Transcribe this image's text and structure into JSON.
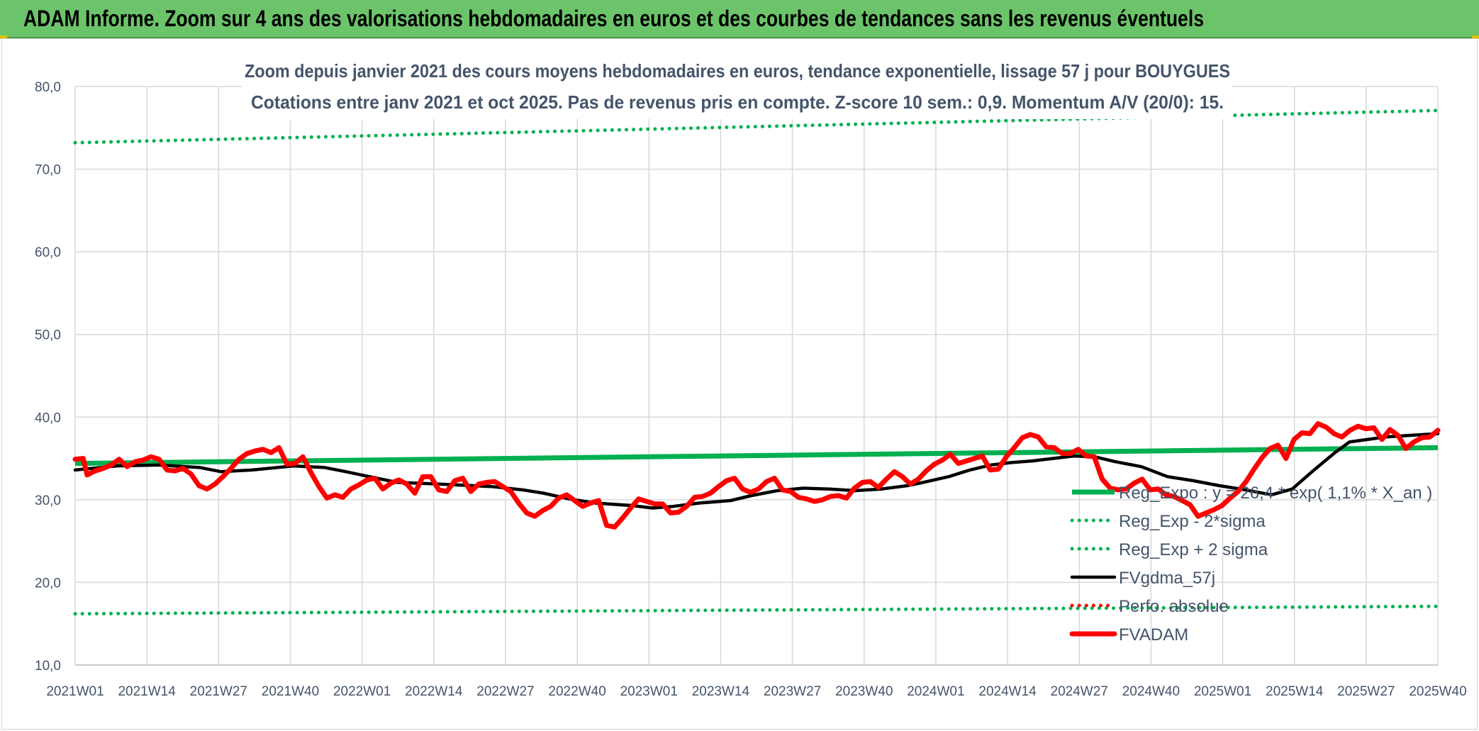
{
  "header": {
    "title": "ADAM Informe. Zoom sur 4 ans des valorisations hebdomadaires en euros et des courbes de tendances sans les revenus éventuels"
  },
  "colors": {
    "banner": "#6cc46a",
    "trend_green": "#00b050",
    "black": "#000000",
    "red": "#ff0000",
    "grid": "#d9d9d9",
    "text": "#44546a"
  },
  "chart_data": {
    "type": "line",
    "title": "Zoom depuis janvier 2021 des cours moyens hebdomadaires en euros, tendance exponentielle, lissage 57 j pour BOUYGUES",
    "subtitle": "Cotations entre janv 2021 et oct 2025. Pas de revenus pris en compte. Z-score 10 sem.: 0,9. Momentum A/V (20/0): 15.",
    "x_ticks": [
      "2021W01",
      "2021W14",
      "2021W27",
      "2021W40",
      "2022W01",
      "2022W14",
      "2022W27",
      "2022W40",
      "2023W01",
      "2023W14",
      "2023W27",
      "2023W40",
      "2024W01",
      "2024W14",
      "2024W27",
      "2024W40",
      "2025W01",
      "2025W14",
      "2025W27",
      "2025W40"
    ],
    "y_ticks": [
      "80,0",
      "70,0",
      "60,0",
      "50,0",
      "40,0",
      "30,0",
      "20,0",
      "10,0"
    ],
    "ylim": [
      10,
      80
    ],
    "grid": true,
    "legend_position": "lower-right",
    "series": [
      {
        "name": "Reg_Expo : y = 26,4 * exp( 1,1% *  X_an )",
        "style": "solid-thick",
        "color": "#00b050",
        "points": [
          [
            0,
            34.4
          ],
          [
            247,
            36.3
          ]
        ]
      },
      {
        "name": "Reg_Exp - 2*sigma",
        "style": "dotted",
        "color": "#00b050",
        "points": [
          [
            0,
            16.2
          ],
          [
            247,
            17.1
          ]
        ]
      },
      {
        "name": "Reg_Exp + 2 sigma",
        "style": "dotted",
        "color": "#00b050",
        "points": [
          [
            0,
            73.2
          ],
          [
            247,
            77.1
          ]
        ]
      },
      {
        "name": "FVgdma_57j",
        "style": "solid",
        "color": "#000000",
        "points": [
          [
            0,
            33.6
          ],
          [
            8,
            34.1
          ],
          [
            16,
            34.2
          ],
          [
            24,
            33.9
          ],
          [
            28,
            33.4
          ],
          [
            34,
            33.6
          ],
          [
            42,
            34.1
          ],
          [
            48,
            33.9
          ],
          [
            52,
            33.4
          ],
          [
            58,
            32.6
          ],
          [
            62,
            32.1
          ],
          [
            70,
            31.9
          ],
          [
            80,
            31.6
          ],
          [
            86,
            31.2
          ],
          [
            90,
            30.8
          ],
          [
            95,
            30.1
          ],
          [
            100,
            29.6
          ],
          [
            107,
            29.3
          ],
          [
            111,
            29.0
          ],
          [
            115,
            29.2
          ],
          [
            120,
            29.6
          ],
          [
            126,
            29.9
          ],
          [
            130,
            30.5
          ],
          [
            135,
            31.1
          ],
          [
            140,
            31.4
          ],
          [
            145,
            31.3
          ],
          [
            150,
            31.1
          ],
          [
            155,
            31.3
          ],
          [
            160,
            31.7
          ],
          [
            163,
            32.1
          ],
          [
            168,
            32.8
          ],
          [
            172,
            33.6
          ],
          [
            176,
            34.2
          ],
          [
            180,
            34.5
          ],
          [
            184,
            34.7
          ],
          [
            188,
            35.0
          ],
          [
            192,
            35.3
          ],
          [
            196,
            35.2
          ],
          [
            200,
            34.6
          ],
          [
            205,
            34.0
          ],
          [
            210,
            32.8
          ],
          [
            215,
            32.3
          ],
          [
            220,
            31.7
          ],
          [
            225,
            31.2
          ],
          [
            230,
            30.6
          ],
          [
            234,
            31.3
          ],
          [
            238,
            33.5
          ],
          [
            242,
            35.6
          ],
          [
            245,
            37.0
          ],
          [
            252,
            37.6
          ],
          [
            257,
            37.8
          ],
          [
            262,
            38.0
          ]
        ]
      },
      {
        "name": "Perfo. absolue",
        "style": "dotted",
        "color": "#ff0000",
        "points": []
      },
      {
        "name": "FVADAM",
        "style": "solid-thick",
        "color": "#ff0000",
        "points": [
          [
            0,
            34.9
          ],
          [
            2,
            35.0
          ],
          [
            3,
            33.0
          ],
          [
            5,
            33.5
          ],
          [
            7,
            33.8
          ],
          [
            9,
            34.2
          ],
          [
            11,
            34.9
          ],
          [
            13,
            34.0
          ],
          [
            15,
            34.6
          ],
          [
            17,
            34.8
          ],
          [
            19,
            35.2
          ],
          [
            21,
            34.9
          ],
          [
            23,
            33.6
          ],
          [
            25,
            33.5
          ],
          [
            27,
            33.8
          ],
          [
            29,
            33.1
          ],
          [
            31,
            31.7
          ],
          [
            33,
            31.3
          ],
          [
            35,
            31.9
          ],
          [
            37,
            32.8
          ],
          [
            39,
            33.8
          ],
          [
            41,
            34.9
          ],
          [
            43,
            35.6
          ],
          [
            45,
            35.9
          ],
          [
            47,
            36.1
          ],
          [
            49,
            35.7
          ],
          [
            51,
            36.3
          ],
          [
            53,
            34.3
          ],
          [
            55,
            34.4
          ],
          [
            57,
            35.2
          ],
          [
            59,
            33.3
          ],
          [
            61,
            31.6
          ],
          [
            63,
            30.2
          ],
          [
            65,
            30.6
          ],
          [
            67,
            30.3
          ],
          [
            69,
            31.3
          ],
          [
            71,
            31.8
          ],
          [
            73,
            32.4
          ],
          [
            75,
            32.6
          ],
          [
            77,
            31.3
          ],
          [
            79,
            32.0
          ],
          [
            81,
            32.4
          ],
          [
            83,
            31.9
          ],
          [
            85,
            30.8
          ],
          [
            87,
            32.8
          ],
          [
            89,
            32.8
          ],
          [
            91,
            31.2
          ],
          [
            93,
            31.0
          ],
          [
            95,
            32.3
          ],
          [
            97,
            32.6
          ],
          [
            99,
            31.0
          ],
          [
            101,
            31.9
          ],
          [
            103,
            32.1
          ],
          [
            105,
            32.2
          ],
          [
            107,
            31.6
          ],
          [
            109,
            31.0
          ],
          [
            111,
            29.6
          ],
          [
            113,
            28.4
          ],
          [
            115,
            28.0
          ],
          [
            117,
            28.7
          ],
          [
            119,
            29.2
          ],
          [
            121,
            30.2
          ],
          [
            123,
            30.6
          ],
          [
            125,
            29.9
          ],
          [
            127,
            29.2
          ],
          [
            129,
            29.6
          ],
          [
            131,
            29.9
          ],
          [
            133,
            26.9
          ],
          [
            135,
            26.7
          ],
          [
            137,
            27.8
          ],
          [
            139,
            29.0
          ],
          [
            141,
            30.1
          ],
          [
            143,
            29.8
          ],
          [
            145,
            29.5
          ],
          [
            147,
            29.5
          ],
          [
            149,
            28.4
          ],
          [
            151,
            28.5
          ],
          [
            153,
            29.2
          ],
          [
            155,
            30.3
          ],
          [
            157,
            30.4
          ],
          [
            159,
            30.8
          ],
          [
            161,
            31.6
          ],
          [
            163,
            32.3
          ],
          [
            165,
            32.6
          ],
          [
            167,
            31.3
          ],
          [
            169,
            30.9
          ],
          [
            171,
            31.3
          ],
          [
            173,
            32.2
          ],
          [
            175,
            32.6
          ],
          [
            177,
            31.2
          ],
          [
            179,
            31.0
          ],
          [
            181,
            30.3
          ],
          [
            183,
            30.1
          ],
          [
            185,
            29.8
          ],
          [
            187,
            30.0
          ],
          [
            189,
            30.4
          ],
          [
            191,
            30.5
          ],
          [
            193,
            30.2
          ],
          [
            195,
            31.4
          ],
          [
            197,
            32.1
          ],
          [
            199,
            32.2
          ],
          [
            201,
            31.5
          ],
          [
            203,
            32.5
          ],
          [
            205,
            33.4
          ],
          [
            207,
            32.8
          ],
          [
            209,
            31.9
          ],
          [
            211,
            32.5
          ],
          [
            213,
            33.5
          ],
          [
            215,
            34.3
          ],
          [
            217,
            34.8
          ],
          [
            219,
            35.5
          ],
          [
            221,
            34.4
          ],
          [
            223,
            34.7
          ],
          [
            225,
            35.0
          ],
          [
            227,
            35.3
          ],
          [
            229,
            33.6
          ],
          [
            231,
            33.7
          ],
          [
            233,
            35.2
          ],
          [
            235,
            36.3
          ],
          [
            237,
            37.5
          ],
          [
            239,
            37.9
          ],
          [
            241,
            37.6
          ],
          [
            243,
            36.4
          ],
          [
            245,
            36.3
          ],
          [
            247,
            35.6
          ],
          [
            249,
            35.6
          ],
          [
            251,
            36.1
          ],
          [
            253,
            35.3
          ],
          [
            255,
            35.2
          ],
          [
            257,
            32.5
          ],
          [
            259,
            31.4
          ],
          [
            261,
            31.2
          ],
          [
            263,
            31.3
          ],
          [
            265,
            32.0
          ],
          [
            267,
            32.5
          ],
          [
            269,
            31.2
          ],
          [
            271,
            31.3
          ],
          [
            273,
            30.6
          ],
          [
            275,
            30.4
          ],
          [
            277,
            29.9
          ],
          [
            279,
            29.4
          ],
          [
            281,
            28.0
          ],
          [
            283,
            28.4
          ],
          [
            285,
            28.8
          ],
          [
            287,
            29.3
          ],
          [
            289,
            30.2
          ],
          [
            291,
            31.0
          ],
          [
            293,
            32.2
          ],
          [
            295,
            33.7
          ],
          [
            297,
            35.1
          ],
          [
            299,
            36.2
          ],
          [
            301,
            36.6
          ],
          [
            303,
            35.0
          ],
          [
            305,
            37.3
          ],
          [
            307,
            38.1
          ],
          [
            309,
            38.0
          ],
          [
            311,
            39.2
          ],
          [
            313,
            38.8
          ],
          [
            315,
            38.0
          ],
          [
            317,
            37.6
          ],
          [
            319,
            38.4
          ],
          [
            321,
            38.9
          ],
          [
            323,
            38.6
          ],
          [
            325,
            38.7
          ],
          [
            327,
            37.3
          ],
          [
            329,
            38.5
          ],
          [
            331,
            37.8
          ],
          [
            333,
            36.2
          ],
          [
            335,
            37.0
          ],
          [
            337,
            37.5
          ],
          [
            339,
            37.6
          ],
          [
            341,
            38.4
          ]
        ]
      }
    ]
  }
}
